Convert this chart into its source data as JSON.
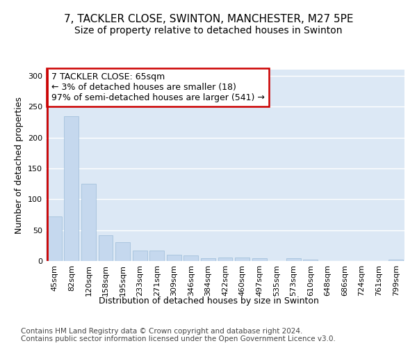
{
  "title1": "7, TACKLER CLOSE, SWINTON, MANCHESTER, M27 5PE",
  "title2": "Size of property relative to detached houses in Swinton",
  "xlabel": "Distribution of detached houses by size in Swinton",
  "ylabel": "Number of detached properties",
  "categories": [
    "45sqm",
    "82sqm",
    "120sqm",
    "158sqm",
    "195sqm",
    "233sqm",
    "271sqm",
    "309sqm",
    "346sqm",
    "384sqm",
    "422sqm",
    "460sqm",
    "497sqm",
    "535sqm",
    "573sqm",
    "610sqm",
    "648sqm",
    "686sqm",
    "724sqm",
    "761sqm",
    "799sqm"
  ],
  "values": [
    72,
    235,
    125,
    42,
    30,
    17,
    17,
    10,
    9,
    5,
    6,
    6,
    4,
    0,
    4,
    2,
    0,
    0,
    0,
    0,
    2
  ],
  "bar_color": "#c5d8ee",
  "bar_edge_color": "#9bbcd8",
  "highlight_bar_index": 0,
  "highlight_color": "#cc0000",
  "annotation_text": "7 TACKLER CLOSE: 65sqm\n← 3% of detached houses are smaller (18)\n97% of semi-detached houses are larger (541) →",
  "annotation_box_color": "#ffffff",
  "annotation_box_edge_color": "#cc0000",
  "ylim": [
    0,
    310
  ],
  "yticks": [
    0,
    50,
    100,
    150,
    200,
    250,
    300
  ],
  "footnote": "Contains HM Land Registry data © Crown copyright and database right 2024.\nContains public sector information licensed under the Open Government Licence v3.0.",
  "bg_color": "#ffffff",
  "plot_bg_color": "#dce8f5",
  "grid_color": "#ffffff",
  "title1_fontsize": 11,
  "title2_fontsize": 10,
  "xlabel_fontsize": 9,
  "ylabel_fontsize": 9,
  "tick_fontsize": 8,
  "annot_fontsize": 9,
  "footnote_fontsize": 7.5
}
